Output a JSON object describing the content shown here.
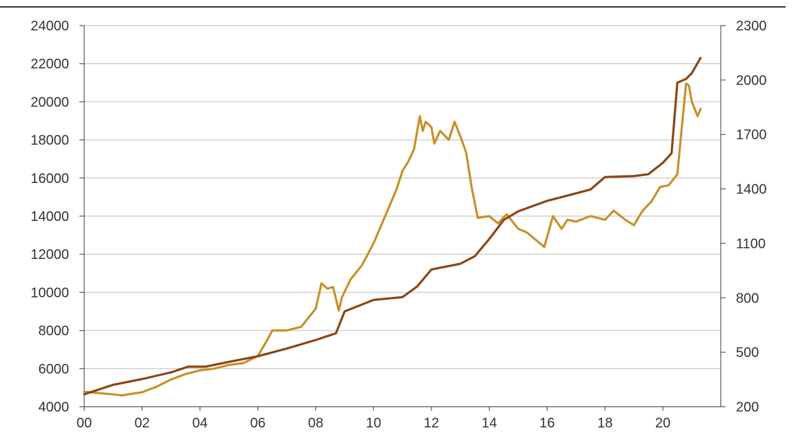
{
  "chart_data": {
    "type": "line",
    "title": "",
    "xlabel": "",
    "ylabel_left": "",
    "ylabel_right": "",
    "grid": true,
    "legend": "none",
    "x_ticks": [
      "00",
      "02",
      "04",
      "06",
      "08",
      "10",
      "12",
      "14",
      "16",
      "18",
      "20"
    ],
    "x_range": [
      2000,
      2022
    ],
    "left_axis": {
      "range": [
        4000,
        24000
      ],
      "ticks": [
        "4000",
        "6000",
        "8000",
        "10000",
        "12000",
        "14000",
        "16000",
        "18000",
        "20000",
        "22000",
        "24000"
      ]
    },
    "right_axis": {
      "range": [
        200,
        2300
      ],
      "ticks": [
        "200",
        "500",
        "800",
        "1100",
        "1400",
        "1700",
        "2000",
        "2300"
      ]
    },
    "series": [
      {
        "axis": "left",
        "color": "#8B4513",
        "x": [
          2000,
          2001,
          2002,
          2003,
          2003.6,
          2004.2,
          2005,
          2006,
          2007,
          2008,
          2008.7,
          2009,
          2009.5,
          2010,
          2011,
          2011.5,
          2012,
          2013,
          2013.5,
          2014,
          2014.5,
          2015,
          2016,
          2017,
          2017.5,
          2018,
          2019,
          2019.5,
          2020,
          2020.3,
          2020.5,
          2020.8,
          2021,
          2021.3
        ],
        "values": [
          4650,
          5150,
          5450,
          5800,
          6100,
          6100,
          6350,
          6650,
          7050,
          7500,
          7850,
          9000,
          9300,
          9600,
          9750,
          10300,
          11200,
          11500,
          11900,
          12800,
          13800,
          14250,
          14800,
          15200,
          15400,
          16050,
          16100,
          16200,
          16800,
          17300,
          21000,
          21200,
          21500,
          22300
        ]
      },
      {
        "axis": "right",
        "color": "#C8902A",
        "x": [
          2000,
          2000.5,
          2001,
          2001.3,
          2002,
          2002.5,
          2003,
          2003.5,
          2004,
          2004.5,
          2005,
          2005.5,
          2006,
          2006.3,
          2006.5,
          2007,
          2007.5,
          2008,
          2008.2,
          2008.4,
          2008.6,
          2008.8,
          2008.9,
          2009.2,
          2009.6,
          2010,
          2010.4,
          2010.8,
          2011,
          2011.2,
          2011.4,
          2011.6,
          2011.7,
          2011.8,
          2012,
          2012.1,
          2012.3,
          2012.6,
          2012.8,
          2013,
          2013.2,
          2013.4,
          2013.6,
          2014,
          2014.3,
          2014.6,
          2015,
          2015.3,
          2015.6,
          2015.9,
          2016.2,
          2016.5,
          2016.7,
          2017,
          2017.5,
          2018,
          2018.3,
          2018.7,
          2019,
          2019.3,
          2019.6,
          2019.9,
          2020.2,
          2020.5,
          2020.8,
          2020.9,
          2021,
          2021.2,
          2021.3
        ],
        "values": [
          282,
          275,
          268,
          262,
          280,
          310,
          350,
          380,
          400,
          410,
          430,
          440,
          480,
          560,
          620,
          620,
          640,
          740,
          880,
          850,
          860,
          730,
          800,
          900,
          980,
          1100,
          1250,
          1400,
          1500,
          1550,
          1620,
          1800,
          1720,
          1770,
          1740,
          1650,
          1720,
          1670,
          1770,
          1690,
          1600,
          1400,
          1240,
          1250,
          1210,
          1260,
          1180,
          1160,
          1120,
          1080,
          1250,
          1180,
          1230,
          1220,
          1250,
          1230,
          1280,
          1230,
          1200,
          1280,
          1330,
          1410,
          1420,
          1480,
          1980,
          1970,
          1880,
          1800,
          1840
        ]
      }
    ]
  }
}
